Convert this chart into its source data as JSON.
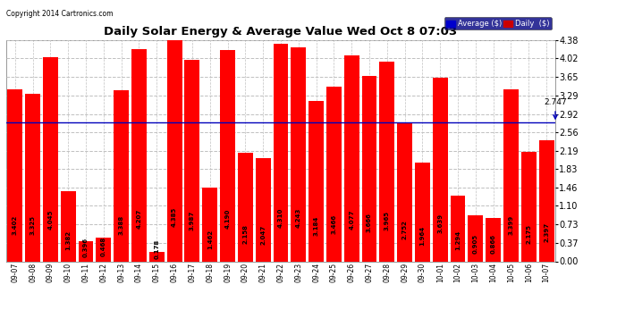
{
  "title": "Daily Solar Energy & Average Value Wed Oct 8 07:03",
  "copyright": "Copyright 2014 Cartronics.com",
  "average_value": 2.747,
  "bar_color": "#ff0000",
  "avg_line_color": "#0000bb",
  "background_color": "#ffffff",
  "plot_background": "#ffffff",
  "grid_color": "#c0c0c0",
  "categories": [
    "09-07",
    "09-08",
    "09-09",
    "09-10",
    "09-11",
    "09-12",
    "09-13",
    "09-14",
    "09-15",
    "09-16",
    "09-17",
    "09-18",
    "09-19",
    "09-20",
    "09-21",
    "09-22",
    "09-23",
    "09-24",
    "09-25",
    "09-26",
    "09-27",
    "09-28",
    "09-29",
    "09-30",
    "10-01",
    "10-02",
    "10-03",
    "10-04",
    "10-05",
    "10-06",
    "10-07"
  ],
  "values": [
    3.402,
    3.325,
    4.045,
    1.382,
    0.396,
    0.468,
    3.388,
    4.207,
    0.178,
    4.385,
    3.987,
    1.462,
    4.19,
    2.158,
    2.047,
    4.31,
    4.243,
    3.184,
    3.466,
    4.077,
    3.666,
    3.965,
    2.752,
    1.964,
    3.639,
    1.294,
    0.905,
    0.866,
    3.399,
    2.175,
    2.397
  ],
  "yticks": [
    0.0,
    0.37,
    0.73,
    1.1,
    1.46,
    1.83,
    2.19,
    2.56,
    2.92,
    3.29,
    3.65,
    4.02,
    4.38
  ],
  "ylim": [
    0,
    4.56
  ],
  "legend_avg_color": "#0000cc",
  "legend_avg_label": "Average ($)",
  "legend_daily_color": "#ff0000",
  "legend_daily_label": "Daily  ($)",
  "avg_annotation_label": "2.747"
}
